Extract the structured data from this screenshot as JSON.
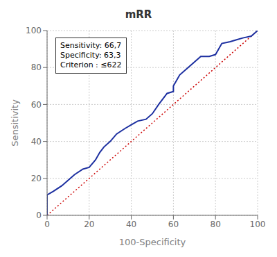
{
  "chart_data": {
    "type": "line",
    "title": "mRR",
    "xlabel": "100-Specificity",
    "ylabel": "Sensitivity",
    "xlim": [
      0,
      100
    ],
    "ylim": [
      0,
      100
    ],
    "xticks": [
      0,
      20,
      40,
      60,
      80,
      100
    ],
    "yticks": [
      0,
      20,
      40,
      60,
      80,
      100
    ],
    "grid": true,
    "series": [
      {
        "color": "#cc0000",
        "line_style": "dotted",
        "x": [
          0,
          100
        ],
        "values": [
          0,
          100
        ]
      },
      {
        "color": "#1c2fa0",
        "line_style": "solid",
        "x": [
          0,
          0,
          3,
          7,
          10,
          13,
          17,
          20,
          23,
          25,
          27,
          30,
          33,
          37,
          40,
          43,
          47,
          50,
          53,
          57,
          60,
          60,
          63,
          67,
          70,
          73,
          77,
          80,
          83,
          87,
          90,
          93,
          97,
          100
        ],
        "values": [
          0,
          11,
          13,
          16,
          19,
          22,
          25,
          26,
          30,
          34,
          37,
          40,
          44,
          47,
          49,
          51,
          52,
          55,
          60,
          66,
          67,
          70,
          76,
          80,
          83,
          86,
          86,
          87,
          93,
          94,
          95,
          96,
          97,
          100
        ]
      }
    ],
    "annotations": [
      "Sensitivity: 66,7\nSpecificity: 63,3\nCriterion : ≤622"
    ]
  }
}
